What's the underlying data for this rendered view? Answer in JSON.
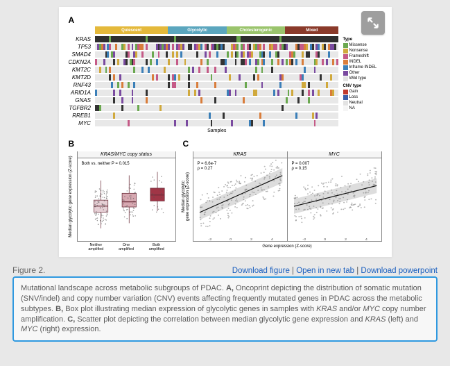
{
  "panelA": {
    "label": "A",
    "subtypes": [
      {
        "name": "Quiescent",
        "color": "#e4b93b",
        "width": 0.3
      },
      {
        "name": "Glycolytic",
        "color": "#5ba6be",
        "width": 0.24
      },
      {
        "name": "Cholesterogenic",
        "color": "#9ac46c",
        "width": 0.24
      },
      {
        "name": "Mixed",
        "color": "#8a3a2a",
        "width": 0.22
      }
    ],
    "genes": [
      "KRAS",
      "TP53",
      "SMAD4",
      "CDKN2A",
      "KMT2C",
      "KMT2D",
      "RNF43",
      "ARID1A",
      "GNAS",
      "TGFBR2",
      "RREB1",
      "MYC"
    ],
    "samples_label": "Samples",
    "mut_legend_title": "Type",
    "mut_legend": [
      {
        "name": "Missense",
        "color": "#6aa84f"
      },
      {
        "name": "Nonsense",
        "color": "#d0a93c"
      },
      {
        "name": "Frameshift",
        "color": "#c55a87"
      },
      {
        "name": "INDEL",
        "color": "#d97d3b"
      },
      {
        "name": "Inframe INDEL",
        "color": "#3b7fb8"
      },
      {
        "name": "Other",
        "color": "#7a4aa0"
      },
      {
        "name": "Wild type",
        "color": "#e3e3e3"
      }
    ],
    "cnv_legend_title": "CNV type",
    "cnv_legend": [
      {
        "name": "Gain",
        "color": "#c0392b"
      },
      {
        "name": "Loss",
        "color": "#3a5fa8"
      },
      {
        "name": "Neutral",
        "color": "#e3e3e3"
      },
      {
        "name": "NA",
        "color": "#f5f5f5"
      }
    ],
    "track_colors": {
      "bg": "#e8e8e8",
      "tick_palette": [
        "#6aa84f",
        "#c55a87",
        "#3b7fb8",
        "#d97d3b",
        "#7a4aa0",
        "#d0a93c",
        "#333333"
      ],
      "kras_dense": "#2e2e2e"
    },
    "densities": [
      0.95,
      0.65,
      0.35,
      0.3,
      0.15,
      0.15,
      0.1,
      0.12,
      0.06,
      0.05,
      0.08,
      0.1
    ]
  },
  "panelB": {
    "label": "B",
    "title": "KRAS/MYC copy status",
    "pvalue_text": "Both vs. neither P = 0.015",
    "ylabel": "Median glycolytic gene expression (Z-score)",
    "categories": [
      "Neither amplified",
      "One amplified",
      "Both amplified"
    ],
    "boxes": [
      {
        "q1": -0.55,
        "med": -0.2,
        "q3": 0.15,
        "whLo": -1.5,
        "whHi": 1.3,
        "color": "#e6cfd5"
      },
      {
        "q1": -0.25,
        "med": 0.05,
        "q3": 0.55,
        "whLo": -1.2,
        "whHi": 1.6,
        "color": "#d7a8b1"
      },
      {
        "q1": 0.1,
        "med": 0.45,
        "q3": 0.85,
        "whLo": -0.5,
        "whHi": 1.8,
        "color": "#a03546"
      }
    ],
    "ylim": [
      -2,
      2
    ],
    "n_points": [
      80,
      45,
      20
    ],
    "jitter_color": "#555555",
    "box_border": "#6b2d3a"
  },
  "panelC": {
    "label": "C",
    "ylabel": "Median glycolytic\ngene expression (Z-score)",
    "xlabel": "Gene expression (Z-score)",
    "panes": [
      {
        "gene": "KRAS",
        "p": "P = 6.6e-7",
        "rho": "ρ = 0.27",
        "slope": 0.25,
        "intercept": 0.0
      },
      {
        "gene": "MYC",
        "p": "P = 0.007",
        "rho": "ρ = 0.15",
        "slope": 0.14,
        "intercept": 0.0
      }
    ],
    "xlim": [
      -3,
      5
    ],
    "ylim": [
      -2,
      2
    ],
    "n_points": 200,
    "point_color": "#777777",
    "line_color": "#111111",
    "ribbon_color": "#bbbbbb"
  },
  "links": {
    "download_figure": "Download figure",
    "open_in_new_tab": "Open in new tab",
    "download_powerpoint": "Download powerpoint",
    "separator": " | "
  },
  "figure_number": "Figure 2.",
  "caption": {
    "intro": "Mutational landscape across metabolic subgroups of PDAC. ",
    "A": "Oncoprint depicting the distribution of somatic mutation (SNV/indel) and copy number variation (CNV) events affecting frequently mutated genes in PDAC across the metabolic subtypes. ",
    "B": "Box plot illustrating median expression of glycolytic genes in samples with ",
    "B_genes": "KRAS",
    "B_mid": " and/or ",
    "B_genes2": "MYC",
    "B_end": " copy number amplification. ",
    "C": "Scatter plot depicting the correlation between median glycolytic gene expression and ",
    "C_g1": "KRAS",
    "C_mid": " (left) and ",
    "C_g2": "MYC",
    "C_end": " (right) expression."
  },
  "expand_icon_label": "EL"
}
